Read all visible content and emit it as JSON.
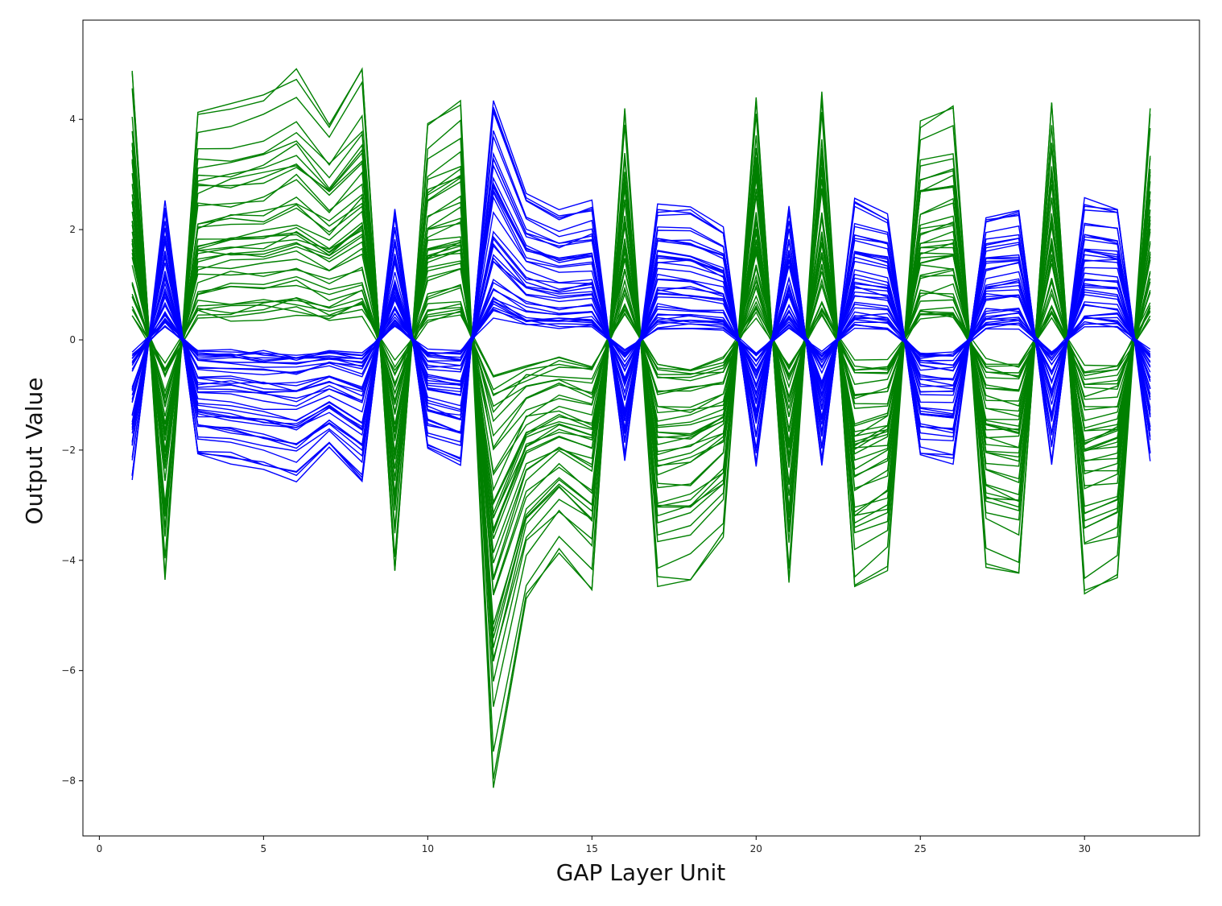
{
  "chart_data": {
    "type": "line",
    "title": "",
    "xlabel": "GAP Layer Unit",
    "ylabel": "Output Value",
    "xlim": [
      -0.5,
      33.5
    ],
    "ylim": [
      -9.0,
      5.8
    ],
    "xticks": [
      0,
      5,
      10,
      15,
      20,
      25,
      30
    ],
    "yticks": [
      -8,
      -6,
      -4,
      -2,
      0,
      2,
      4
    ],
    "xtick_labels": [
      "0",
      "5",
      "10",
      "15",
      "20",
      "25",
      "30"
    ],
    "ytick_labels": [
      "−8",
      "−6",
      "−4",
      "−2",
      "0",
      "2",
      "4"
    ],
    "grid": false,
    "legend": false,
    "x": [
      1,
      2,
      3,
      4,
      5,
      6,
      7,
      8,
      9,
      10,
      11,
      12,
      13,
      14,
      15,
      16,
      17,
      18,
      19,
      20,
      21,
      22,
      23,
      24,
      25,
      26,
      27,
      28,
      29,
      30,
      31,
      32
    ],
    "series": [
      {
        "color": "#008000",
        "line_count": 40,
        "base_values": [
          5.1,
          -4.6,
          4.25,
          4.4,
          4.6,
          5.05,
          4.1,
          5.15,
          -4.45,
          4.0,
          4.5,
          -8.3,
          -4.9,
          -4.0,
          -4.7,
          4.35,
          -4.6,
          -4.5,
          -3.7,
          4.65,
          -4.6,
          4.65,
          -4.75,
          -4.3,
          4.1,
          4.35,
          -4.2,
          -4.45,
          4.5,
          -4.8,
          -4.45,
          4.3
        ]
      },
      {
        "color": "#0000ff",
        "line_count": 40,
        "base_values": [
          -2.65,
          2.6,
          -2.2,
          -2.3,
          -2.45,
          -2.65,
          -2.05,
          -2.7,
          2.5,
          -2.1,
          -2.35,
          4.6,
          2.75,
          2.4,
          2.6,
          -2.3,
          2.55,
          2.5,
          2.1,
          -2.45,
          2.6,
          -2.4,
          2.65,
          2.4,
          -2.2,
          -2.3,
          2.35,
          2.5,
          -2.4,
          2.65,
          2.5,
          -2.25
        ]
      }
    ]
  }
}
